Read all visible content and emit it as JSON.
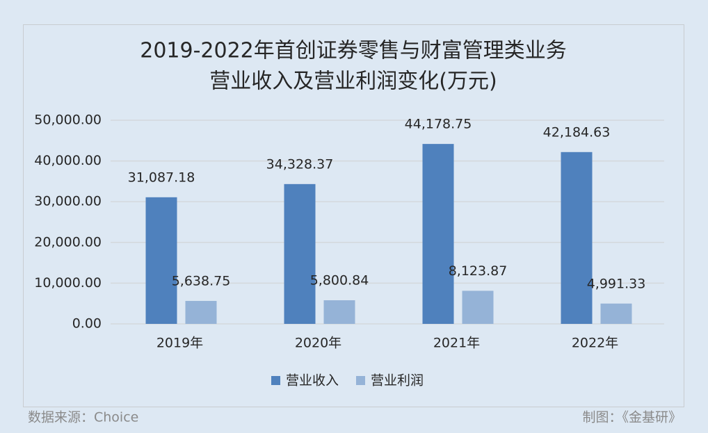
{
  "chart_data": {
    "type": "bar",
    "title": [
      "2019-2022年首创证券零售与财富管理类业务",
      "营业收入及营业利润变化(万元)"
    ],
    "categories": [
      "2019年",
      "2020年",
      "2021年",
      "2022年"
    ],
    "series": [
      {
        "name": "营业收入",
        "color": "#4f81bd",
        "values": [
          31087.18,
          34328.37,
          44178.75,
          42184.63
        ],
        "value_labels": [
          "31,087.18",
          "34,328.37",
          "44,178.75",
          "42,184.63"
        ]
      },
      {
        "name": "营业利润",
        "color": "#95b3d7",
        "values": [
          5638.75,
          5800.84,
          8123.87,
          4991.33
        ],
        "value_labels": [
          "5,638.75",
          "5,800.84",
          "8,123.87",
          "4,991.33"
        ]
      }
    ],
    "ylim": [
      0,
      50000
    ],
    "yticks": [
      {
        "value": 0,
        "label": "0.00"
      },
      {
        "value": 10000,
        "label": "10,000.00"
      },
      {
        "value": 20000,
        "label": "20,000.00"
      },
      {
        "value": 30000,
        "label": "30,000.00"
      },
      {
        "value": 40000,
        "label": "40,000.00"
      },
      {
        "value": 50000,
        "label": "50,000.00"
      }
    ],
    "grid": true,
    "legend": "bottom",
    "source": "数据来源：Choice",
    "credit": "制图：《金基研》"
  }
}
